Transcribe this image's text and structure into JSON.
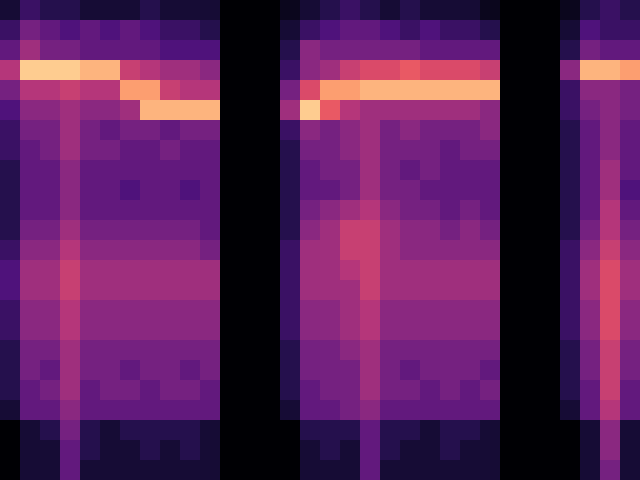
{
  "chart_data": {
    "type": "heatmap",
    "tick_labels": false,
    "zlim": [
      0,
      1
    ],
    "cells": [
      [
        0.1,
        0.2,
        0.15,
        0.15,
        0.1,
        0.1,
        0.1,
        0.15,
        0.1,
        0.1,
        0.1,
        0,
        0,
        0,
        0.05,
        0.1,
        0.15,
        0.2,
        0.15,
        0.1,
        0.15,
        0.1,
        0.1,
        0.1,
        0.05,
        0,
        0,
        0,
        0.05,
        0.15,
        0.2,
        0.15
      ],
      [
        0.2,
        0.35,
        0.3,
        0.25,
        0.3,
        0.25,
        0.3,
        0.25,
        0.2,
        0.2,
        0.15,
        0,
        0,
        0,
        0.1,
        0.2,
        0.25,
        0.3,
        0.3,
        0.25,
        0.2,
        0.25,
        0.2,
        0.2,
        0.15,
        0,
        0,
        0,
        0.1,
        0.25,
        0.2,
        0.2
      ],
      [
        0.3,
        0.45,
        0.35,
        0.35,
        0.3,
        0.3,
        0.3,
        0.3,
        0.25,
        0.25,
        0.25,
        0,
        0,
        0,
        0.15,
        0.4,
        0.35,
        0.35,
        0.35,
        0.35,
        0.35,
        0.3,
        0.3,
        0.3,
        0.3,
        0,
        0,
        0,
        0.15,
        0.35,
        0.3,
        0.3
      ],
      [
        0.5,
        0.9,
        0.9,
        0.9,
        0.85,
        0.85,
        0.55,
        0.5,
        0.45,
        0.45,
        0.4,
        0,
        0,
        0,
        0.2,
        0.4,
        0.45,
        0.55,
        0.6,
        0.6,
        0.65,
        0.6,
        0.6,
        0.6,
        0.55,
        0,
        0,
        0,
        0.4,
        0.85,
        0.85,
        0.8
      ],
      [
        0.35,
        0.5,
        0.5,
        0.55,
        0.5,
        0.5,
        0.8,
        0.8,
        0.55,
        0.5,
        0.5,
        0,
        0,
        0,
        0.35,
        0.6,
        0.8,
        0.8,
        0.85,
        0.85,
        0.85,
        0.85,
        0.85,
        0.85,
        0.85,
        0,
        0,
        0,
        0.2,
        0.4,
        0.4,
        0.35
      ],
      [
        0.25,
        0.4,
        0.4,
        0.45,
        0.4,
        0.4,
        0.45,
        0.85,
        0.85,
        0.85,
        0.85,
        0,
        0,
        0,
        0.45,
        0.9,
        0.65,
        0.5,
        0.45,
        0.45,
        0.45,
        0.45,
        0.45,
        0.45,
        0.4,
        0,
        0,
        0,
        0.2,
        0.35,
        0.4,
        0.35
      ],
      [
        0.2,
        0.35,
        0.35,
        0.45,
        0.35,
        0.3,
        0.35,
        0.35,
        0.3,
        0.35,
        0.35,
        0,
        0,
        0,
        0.2,
        0.4,
        0.35,
        0.4,
        0.45,
        0.35,
        0.4,
        0.35,
        0.35,
        0.35,
        0.4,
        0,
        0,
        0,
        0.15,
        0.3,
        0.4,
        0.3
      ],
      [
        0.2,
        0.3,
        0.35,
        0.45,
        0.35,
        0.35,
        0.3,
        0.3,
        0.35,
        0.3,
        0.3,
        0,
        0,
        0,
        0.15,
        0.35,
        0.35,
        0.4,
        0.45,
        0.35,
        0.35,
        0.35,
        0.3,
        0.35,
        0.35,
        0,
        0,
        0,
        0.15,
        0.3,
        0.4,
        0.3
      ],
      [
        0.15,
        0.3,
        0.3,
        0.4,
        0.3,
        0.3,
        0.3,
        0.3,
        0.3,
        0.3,
        0.3,
        0,
        0,
        0,
        0.15,
        0.3,
        0.35,
        0.35,
        0.45,
        0.35,
        0.3,
        0.35,
        0.3,
        0.3,
        0.3,
        0,
        0,
        0,
        0.15,
        0.3,
        0.45,
        0.3
      ],
      [
        0.15,
        0.3,
        0.3,
        0.4,
        0.3,
        0.3,
        0.25,
        0.3,
        0.3,
        0.25,
        0.3,
        0,
        0,
        0,
        0.15,
        0.3,
        0.3,
        0.35,
        0.45,
        0.35,
        0.35,
        0.3,
        0.3,
        0.3,
        0.3,
        0,
        0,
        0,
        0.15,
        0.3,
        0.45,
        0.25
      ],
      [
        0.15,
        0.3,
        0.3,
        0.4,
        0.3,
        0.3,
        0.3,
        0.3,
        0.3,
        0.3,
        0.3,
        0,
        0,
        0,
        0.15,
        0.35,
        0.4,
        0.45,
        0.5,
        0.4,
        0.35,
        0.35,
        0.3,
        0.35,
        0.3,
        0,
        0,
        0,
        0.15,
        0.3,
        0.5,
        0.3
      ],
      [
        0.15,
        0.35,
        0.35,
        0.45,
        0.35,
        0.35,
        0.35,
        0.35,
        0.35,
        0.35,
        0.3,
        0,
        0,
        0,
        0.15,
        0.4,
        0.45,
        0.55,
        0.55,
        0.45,
        0.4,
        0.4,
        0.35,
        0.4,
        0.35,
        0,
        0,
        0,
        0.15,
        0.35,
        0.5,
        0.35
      ],
      [
        0.2,
        0.4,
        0.4,
        0.5,
        0.4,
        0.4,
        0.4,
        0.4,
        0.4,
        0.4,
        0.35,
        0,
        0,
        0,
        0.2,
        0.45,
        0.45,
        0.55,
        0.55,
        0.45,
        0.4,
        0.4,
        0.4,
        0.4,
        0.4,
        0,
        0,
        0,
        0.2,
        0.4,
        0.55,
        0.4
      ],
      [
        0.25,
        0.45,
        0.45,
        0.55,
        0.45,
        0.45,
        0.45,
        0.45,
        0.45,
        0.45,
        0.45,
        0,
        0,
        0,
        0.2,
        0.45,
        0.45,
        0.5,
        0.55,
        0.45,
        0.45,
        0.45,
        0.45,
        0.45,
        0.45,
        0,
        0,
        0,
        0.2,
        0.45,
        0.6,
        0.45
      ],
      [
        0.25,
        0.45,
        0.45,
        0.55,
        0.45,
        0.45,
        0.45,
        0.45,
        0.45,
        0.45,
        0.45,
        0,
        0,
        0,
        0.2,
        0.45,
        0.45,
        0.45,
        0.55,
        0.45,
        0.45,
        0.45,
        0.45,
        0.45,
        0.45,
        0,
        0,
        0,
        0.2,
        0.45,
        0.6,
        0.45
      ],
      [
        0.2,
        0.4,
        0.4,
        0.5,
        0.4,
        0.4,
        0.4,
        0.4,
        0.4,
        0.4,
        0.4,
        0,
        0,
        0,
        0.2,
        0.4,
        0.4,
        0.45,
        0.5,
        0.4,
        0.4,
        0.4,
        0.4,
        0.4,
        0.4,
        0,
        0,
        0,
        0.2,
        0.4,
        0.6,
        0.4
      ],
      [
        0.2,
        0.4,
        0.4,
        0.5,
        0.4,
        0.4,
        0.4,
        0.4,
        0.4,
        0.4,
        0.4,
        0,
        0,
        0,
        0.2,
        0.4,
        0.4,
        0.45,
        0.5,
        0.4,
        0.4,
        0.4,
        0.4,
        0.4,
        0.4,
        0,
        0,
        0,
        0.2,
        0.4,
        0.6,
        0.4
      ],
      [
        0.15,
        0.35,
        0.35,
        0.45,
        0.35,
        0.35,
        0.35,
        0.35,
        0.35,
        0.35,
        0.35,
        0,
        0,
        0,
        0.15,
        0.35,
        0.35,
        0.4,
        0.45,
        0.35,
        0.35,
        0.35,
        0.35,
        0.35,
        0.35,
        0,
        0,
        0,
        0.15,
        0.35,
        0.55,
        0.35
      ],
      [
        0.15,
        0.35,
        0.3,
        0.45,
        0.35,
        0.35,
        0.3,
        0.35,
        0.35,
        0.3,
        0.35,
        0,
        0,
        0,
        0.15,
        0.35,
        0.35,
        0.35,
        0.45,
        0.35,
        0.3,
        0.35,
        0.35,
        0.35,
        0.3,
        0,
        0,
        0,
        0.15,
        0.35,
        0.55,
        0.35
      ],
      [
        0.15,
        0.3,
        0.35,
        0.45,
        0.3,
        0.35,
        0.35,
        0.3,
        0.35,
        0.35,
        0.3,
        0,
        0,
        0,
        0.15,
        0.3,
        0.35,
        0.35,
        0.45,
        0.35,
        0.35,
        0.3,
        0.35,
        0.3,
        0.35,
        0,
        0,
        0,
        0.15,
        0.3,
        0.55,
        0.3
      ],
      [
        0.1,
        0.3,
        0.3,
        0.4,
        0.3,
        0.3,
        0.3,
        0.3,
        0.3,
        0.3,
        0.3,
        0,
        0,
        0,
        0.1,
        0.3,
        0.3,
        0.35,
        0.4,
        0.3,
        0.3,
        0.3,
        0.3,
        0.3,
        0.3,
        0,
        0,
        0,
        0.1,
        0.3,
        0.5,
        0.3
      ],
      [
        0,
        0.1,
        0.15,
        0.35,
        0.15,
        0.1,
        0.15,
        0.15,
        0.15,
        0.15,
        0.1,
        0,
        0,
        0,
        0,
        0.15,
        0.15,
        0.15,
        0.3,
        0.15,
        0.15,
        0.1,
        0.15,
        0.15,
        0.1,
        0,
        0,
        0,
        0,
        0.1,
        0.4,
        0.1
      ],
      [
        0,
        0.1,
        0.1,
        0.3,
        0.15,
        0.1,
        0.1,
        0.15,
        0.1,
        0.15,
        0.1,
        0,
        0,
        0,
        0,
        0.1,
        0.15,
        0.1,
        0.3,
        0.15,
        0.1,
        0.1,
        0.15,
        0.1,
        0.1,
        0,
        0,
        0,
        0,
        0.1,
        0.4,
        0.1
      ],
      [
        0,
        0.1,
        0.1,
        0.3,
        0.1,
        0.1,
        0.1,
        0.1,
        0.1,
        0.1,
        0.1,
        0,
        0,
        0,
        0,
        0.1,
        0.1,
        0.1,
        0.3,
        0.1,
        0.1,
        0.1,
        0.1,
        0.1,
        0.1,
        0,
        0,
        0,
        0,
        0.1,
        0.35,
        0.1
      ]
    ]
  }
}
